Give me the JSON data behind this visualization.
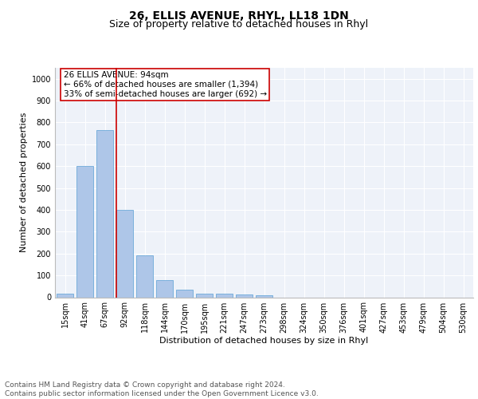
{
  "title1": "26, ELLIS AVENUE, RHYL, LL18 1DN",
  "title2": "Size of property relative to detached houses in Rhyl",
  "xlabel": "Distribution of detached houses by size in Rhyl",
  "ylabel": "Number of detached properties",
  "footnote": "Contains HM Land Registry data © Crown copyright and database right 2024.\nContains public sector information licensed under the Open Government Licence v3.0.",
  "bar_labels": [
    "15sqm",
    "41sqm",
    "67sqm",
    "92sqm",
    "118sqm",
    "144sqm",
    "170sqm",
    "195sqm",
    "221sqm",
    "247sqm",
    "273sqm",
    "298sqm",
    "324sqm",
    "350sqm",
    "376sqm",
    "401sqm",
    "427sqm",
    "453sqm",
    "479sqm",
    "504sqm",
    "530sqm"
  ],
  "bar_values": [
    15,
    600,
    765,
    400,
    190,
    78,
    35,
    18,
    15,
    12,
    8,
    0,
    0,
    0,
    0,
    0,
    0,
    0,
    0,
    0,
    0
  ],
  "bar_color": "#aec6e8",
  "bar_edgecolor": "#5a9fd4",
  "vline_color": "#cc0000",
  "annotation_text": "26 ELLIS AVENUE: 94sqm\n← 66% of detached houses are smaller (1,394)\n33% of semi-detached houses are larger (692) →",
  "annotation_box_color": "#ffffff",
  "annotation_box_edgecolor": "#cc0000",
  "ylim": [
    0,
    1050
  ],
  "yticks": [
    0,
    100,
    200,
    300,
    400,
    500,
    600,
    700,
    800,
    900,
    1000
  ],
  "background_color": "#eef2f9",
  "grid_color": "#ffffff",
  "title1_fontsize": 10,
  "title2_fontsize": 9,
  "axis_label_fontsize": 8,
  "tick_fontsize": 7,
  "annotation_fontsize": 7.5,
  "footnote_fontsize": 6.5
}
